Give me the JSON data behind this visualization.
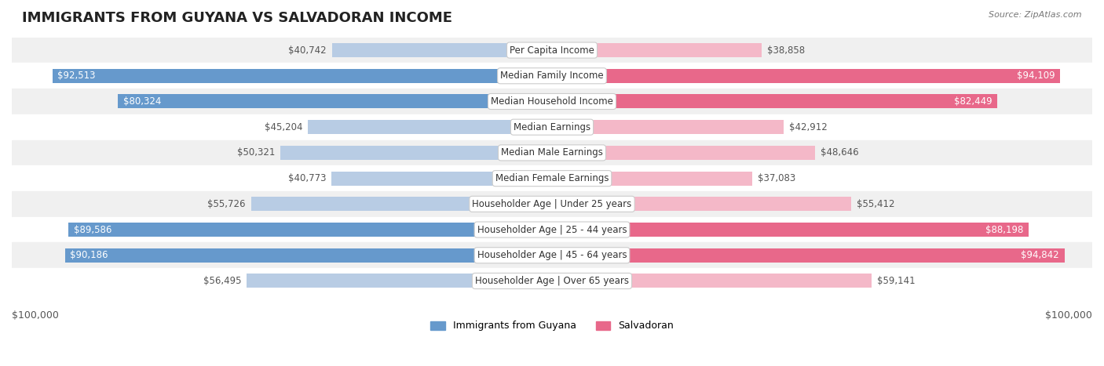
{
  "title": "IMMIGRANTS FROM GUYANA VS SALVADORAN INCOME",
  "source": "Source: ZipAtlas.com",
  "max_value": 100000,
  "categories": [
    "Per Capita Income",
    "Median Family Income",
    "Median Household Income",
    "Median Earnings",
    "Median Male Earnings",
    "Median Female Earnings",
    "Householder Age | Under 25 years",
    "Householder Age | 25 - 44 years",
    "Householder Age | 45 - 64 years",
    "Householder Age | Over 65 years"
  ],
  "guyana_values": [
    40742,
    92513,
    80324,
    45204,
    50321,
    40773,
    55726,
    89586,
    90186,
    56495
  ],
  "salvadoran_values": [
    38858,
    94109,
    82449,
    42912,
    48646,
    37083,
    55412,
    88198,
    94842,
    59141
  ],
  "guyana_labels": [
    "$40,742",
    "$92,513",
    "$80,324",
    "$45,204",
    "$50,321",
    "$40,773",
    "$55,726",
    "$89,586",
    "$90,186",
    "$56,495"
  ],
  "salvadoran_labels": [
    "$38,858",
    "$94,109",
    "$82,449",
    "$42,912",
    "$48,646",
    "$37,083",
    "$55,412",
    "$88,198",
    "$94,842",
    "$59,141"
  ],
  "guyana_color_full": "#6699CC",
  "guyana_color_light": "#B8CCE4",
  "salvadoran_color_full": "#E8688A",
  "salvadoran_color_light": "#F4B8C8",
  "guyana_threshold": 80000,
  "salvadoran_threshold": 80000,
  "row_bg_odd": "#F0F0F0",
  "row_bg_even": "#FFFFFF",
  "label_bg": "#FFFFFF",
  "legend_guyana": "Immigrants from Guyana",
  "legend_salvadoran": "Salvadoran",
  "xlabel_left": "$100,000",
  "xlabel_right": "$100,000"
}
